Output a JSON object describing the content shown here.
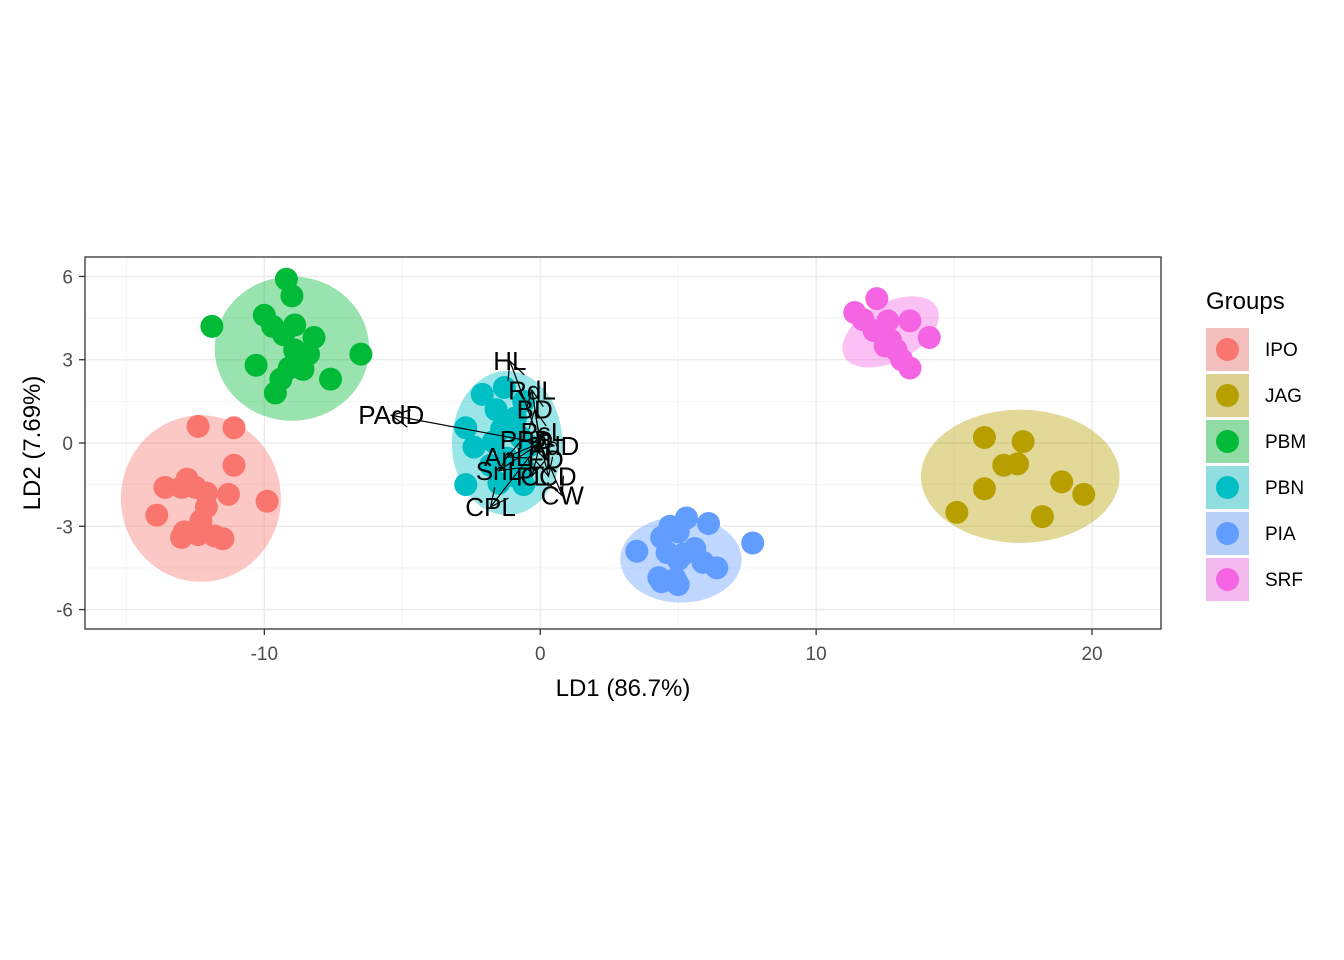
{
  "chart_data": {
    "type": "scatter",
    "xlabel": "LD1 (86.7%)",
    "ylabel": "LD2 (7.69%)",
    "xlim": [
      -16.5,
      22.5
    ],
    "ylim": [
      -6.7,
      6.7
    ],
    "x_ticks": [
      -10,
      0,
      10,
      20
    ],
    "x_tick_labels": [
      "-10",
      "0",
      "10",
      "20"
    ],
    "y_ticks": [
      -6,
      -3,
      0,
      3,
      6
    ],
    "y_tick_labels": [
      "-6",
      "-3",
      "0",
      "3",
      "6"
    ],
    "grid": true,
    "legend_title": "Groups",
    "legend_position": "right",
    "series": [
      {
        "name": "IPO",
        "color": "#F8766D",
        "ellipse": {
          "cx": -12.3,
          "cy": -2.0,
          "rx": 2.9,
          "ry": 3.0,
          "angle": 0
        },
        "points": [
          [
            -12.4,
            0.6
          ],
          [
            -11.1,
            0.55
          ],
          [
            -11.1,
            -0.8
          ],
          [
            -12.8,
            -1.3
          ],
          [
            -13.6,
            -1.6
          ],
          [
            -13.0,
            -1.6
          ],
          [
            -12.5,
            -1.6
          ],
          [
            -12.1,
            -1.8
          ],
          [
            -11.3,
            -1.85
          ],
          [
            -9.9,
            -2.1
          ],
          [
            -12.1,
            -2.3
          ],
          [
            -13.9,
            -2.6
          ],
          [
            -12.3,
            -2.8
          ],
          [
            -12.9,
            -3.2
          ],
          [
            -12.4,
            -3.3
          ],
          [
            -11.8,
            -3.35
          ],
          [
            -13.0,
            -3.4
          ],
          [
            -11.5,
            -3.45
          ]
        ]
      },
      {
        "name": "JAG",
        "color": "#B79F00",
        "ellipse": {
          "cx": 17.4,
          "cy": -1.2,
          "rx": 3.6,
          "ry": 2.4,
          "angle": 0
        },
        "points": [
          [
            16.1,
            0.2
          ],
          [
            17.5,
            0.05
          ],
          [
            16.8,
            -0.8
          ],
          [
            17.3,
            -0.75
          ],
          [
            16.1,
            -1.65
          ],
          [
            18.9,
            -1.4
          ],
          [
            19.7,
            -1.85
          ],
          [
            15.1,
            -2.5
          ],
          [
            18.2,
            -2.65
          ]
        ]
      },
      {
        "name": "PBM",
        "color": "#00BA38",
        "ellipse": {
          "cx": -9.0,
          "cy": 3.4,
          "rx": 2.8,
          "ry": 2.6,
          "angle": 0
        },
        "points": [
          [
            -9.2,
            5.9
          ],
          [
            -9.0,
            5.3
          ],
          [
            -11.9,
            4.2
          ],
          [
            -10.0,
            4.6
          ],
          [
            -9.7,
            4.2
          ],
          [
            -8.9,
            4.25
          ],
          [
            -9.3,
            3.9
          ],
          [
            -8.2,
            3.8
          ],
          [
            -8.9,
            3.35
          ],
          [
            -8.4,
            3.2
          ],
          [
            -6.5,
            3.2
          ],
          [
            -10.3,
            2.8
          ],
          [
            -9.1,
            2.7
          ],
          [
            -8.6,
            2.65
          ],
          [
            -9.4,
            2.3
          ],
          [
            -7.6,
            2.3
          ],
          [
            -9.6,
            1.8
          ]
        ]
      },
      {
        "name": "PBN",
        "color": "#00BFC4",
        "ellipse": {
          "cx": -1.2,
          "cy": -0.0,
          "rx": 2.0,
          "ry": 2.6,
          "angle": 0
        },
        "points": [
          [
            -1.3,
            2.0
          ],
          [
            -2.1,
            1.75
          ],
          [
            -0.6,
            1.5
          ],
          [
            -1.6,
            1.2
          ],
          [
            -0.9,
            0.9
          ],
          [
            -1.4,
            0.5
          ],
          [
            -2.7,
            0.55
          ],
          [
            -0.7,
            0.2
          ],
          [
            -1.7,
            0.05
          ],
          [
            -0.4,
            -0.1
          ],
          [
            -2.4,
            -0.15
          ],
          [
            -1.2,
            -0.55
          ],
          [
            -0.6,
            -0.9
          ],
          [
            -1.8,
            -0.8
          ],
          [
            -0.9,
            -1.2
          ],
          [
            -2.7,
            -1.5
          ],
          [
            -1.5,
            -1.45
          ],
          [
            -0.6,
            -1.5
          ]
        ]
      },
      {
        "name": "PIA",
        "color": "#619CFF",
        "ellipse": {
          "cx": 5.1,
          "cy": -4.2,
          "rx": 2.2,
          "ry": 1.55,
          "angle": 0
        },
        "points": [
          [
            4.7,
            -3.0
          ],
          [
            5.3,
            -2.7
          ],
          [
            6.1,
            -2.9
          ],
          [
            4.4,
            -3.4
          ],
          [
            5.0,
            -3.2
          ],
          [
            7.7,
            -3.6
          ],
          [
            3.5,
            -3.9
          ],
          [
            4.6,
            -3.95
          ],
          [
            5.6,
            -3.8
          ],
          [
            5.2,
            -4.0
          ],
          [
            5.0,
            -4.2
          ],
          [
            5.9,
            -4.3
          ],
          [
            6.4,
            -4.5
          ],
          [
            4.3,
            -4.85
          ],
          [
            4.9,
            -4.9
          ],
          [
            4.4,
            -5.0
          ],
          [
            5.0,
            -5.1
          ]
        ]
      },
      {
        "name": "SRF",
        "color": "#F564E3",
        "ellipse": {
          "cx": 12.7,
          "cy": 4.0,
          "rx": 1.9,
          "ry": 1.05,
          "angle": -28
        },
        "points": [
          [
            12.2,
            5.2
          ],
          [
            11.4,
            4.7
          ],
          [
            11.7,
            4.45
          ],
          [
            12.6,
            4.4
          ],
          [
            13.4,
            4.4
          ],
          [
            12.1,
            4.05
          ],
          [
            14.1,
            3.8
          ],
          [
            12.7,
            3.7
          ],
          [
            12.9,
            3.35
          ],
          [
            12.5,
            3.5
          ],
          [
            13.1,
            3.0
          ],
          [
            13.4,
            2.7
          ]
        ]
      }
    ],
    "arrows": [
      {
        "label": "HL",
        "x": -1.1,
        "y": 2.95
      },
      {
        "label": "RdL",
        "x": -0.3,
        "y": 1.9
      },
      {
        "label": "PAdD",
        "x": -5.4,
        "y": 1.0
      },
      {
        "label": "BD",
        "x": -0.2,
        "y": 1.2
      },
      {
        "label": "CPL",
        "x": -1.8,
        "y": -2.3
      },
      {
        "label": "CW",
        "x": 0.8,
        "y": -1.9
      },
      {
        "label": "PPD",
        "x": -0.5,
        "y": 0.1
      },
      {
        "label": "AnL",
        "x": -1.2,
        "y": -0.5
      },
      {
        "label": "SnL",
        "x": -1.5,
        "y": -1.0
      },
      {
        "label": "PL",
        "x": -0.3,
        "y": -1.2
      },
      {
        "label": "CCD",
        "x": 0.3,
        "y": -1.2
      },
      {
        "label": "ED",
        "x": 0.2,
        "y": -0.6
      },
      {
        "label": "PdD",
        "x": 0.5,
        "y": -0.1
      },
      {
        "label": "PsL",
        "x": 0.1,
        "y": 0.4
      }
    ]
  }
}
